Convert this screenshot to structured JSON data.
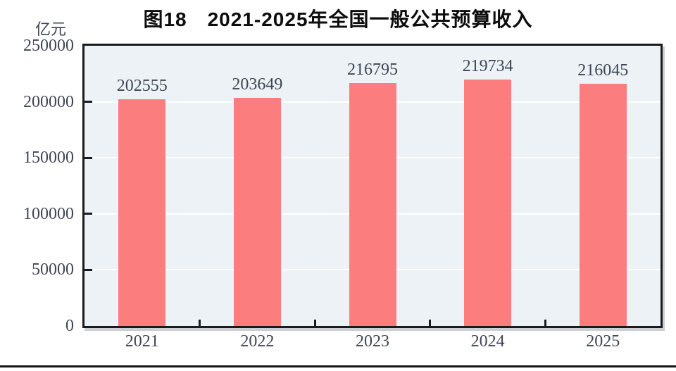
{
  "chart_data": {
    "type": "bar",
    "title": "图18　2021-2025年全国一般公共预算收入",
    "unit": "亿元",
    "categories": [
      "2021",
      "2022",
      "2023",
      "2024",
      "2025"
    ],
    "values": [
      202555,
      203649,
      216795,
      219734,
      216045
    ],
    "xlabel": "",
    "ylabel": "亿元",
    "ylim": [
      0,
      250000
    ],
    "yticks": [
      0,
      50000,
      100000,
      150000,
      200000,
      250000
    ],
    "grid": "horizontal-white-lines",
    "legend": "none",
    "colors": {
      "bar": "#fc7d7d",
      "plot_background": "#edf2f6",
      "gridline": "#ffffff",
      "frame": "#1b1b1b",
      "axis_text": "#3d4653",
      "title_text": "#0d0d0d"
    }
  }
}
